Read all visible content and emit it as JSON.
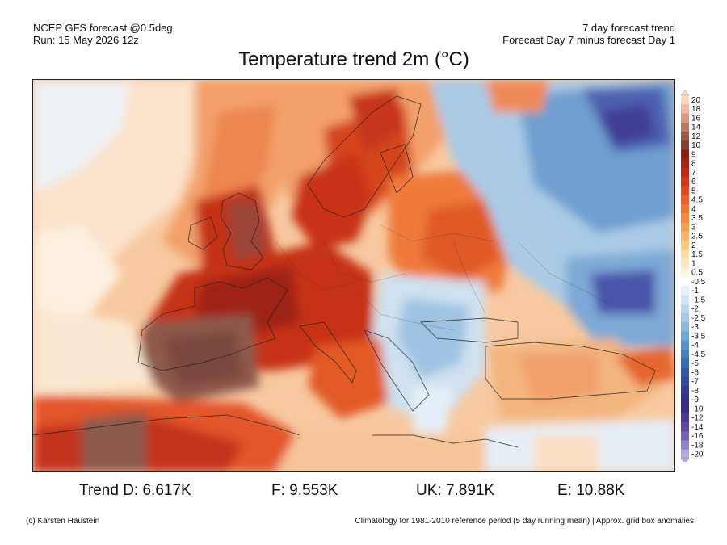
{
  "header": {
    "left_line1": "NCEP GFS forecast @0.5deg",
    "left_line2": "Run: 15 May 2026 12z",
    "right_line1": "7 day forecast trend",
    "right_line2": "Forecast Day 7 minus forecast Day 1"
  },
  "title": "Temperature trend 2m (°C)",
  "colorbar": {
    "labels": [
      "20",
      "18",
      "16",
      "14",
      "12",
      "10",
      "9",
      "8",
      "7",
      "6",
      "5",
      "4.5",
      "4",
      "3.5",
      "3",
      "2.5",
      "2",
      "1.5",
      "1",
      "0.5",
      "-0.5",
      "-1",
      "-1.5",
      "-2",
      "-2.5",
      "-3",
      "-3.5",
      "-4",
      "-4.5",
      "-5",
      "-6",
      "-7",
      "-8",
      "-9",
      "-10",
      "-12",
      "-14",
      "-16",
      "-18",
      "-20"
    ],
    "colors": [
      "#f6d6c4",
      "#e9bca6",
      "#d49a82",
      "#b87a65",
      "#9a5a48",
      "#7e4536",
      "#8e1d12",
      "#a62314",
      "#bf2b16",
      "#d2391c",
      "#e04a22",
      "#e8602b",
      "#ee7632",
      "#f28b40",
      "#f5a053",
      "#f7b56b",
      "#f9c986",
      "#fbdba3",
      "#fdeac4",
      "#fff6e4",
      "#ffffff",
      "#e6f0f8",
      "#d3e5f3",
      "#bcd7ec",
      "#a4c8e4",
      "#8bb8dc",
      "#73a6d2",
      "#5b92c7",
      "#497fbc",
      "#3a6cb1",
      "#3559a6",
      "#34489c",
      "#353a91",
      "#382f88",
      "#3d2a82",
      "#4b3890",
      "#5e4ba0",
      "#7663b4",
      "#9383c8",
      "#b6a9dc"
    ]
  },
  "stats": {
    "trend": "Trend D: 6.617K",
    "f": "F: 9.553K",
    "uk": "UK: 7.891K",
    "e": "E: 10.88K"
  },
  "footer": {
    "left": "(c) Karsten Haustein",
    "right": "Climatology for 1981-2010 reference period (5 day running mean) | Approx. grid box anomalies"
  }
}
